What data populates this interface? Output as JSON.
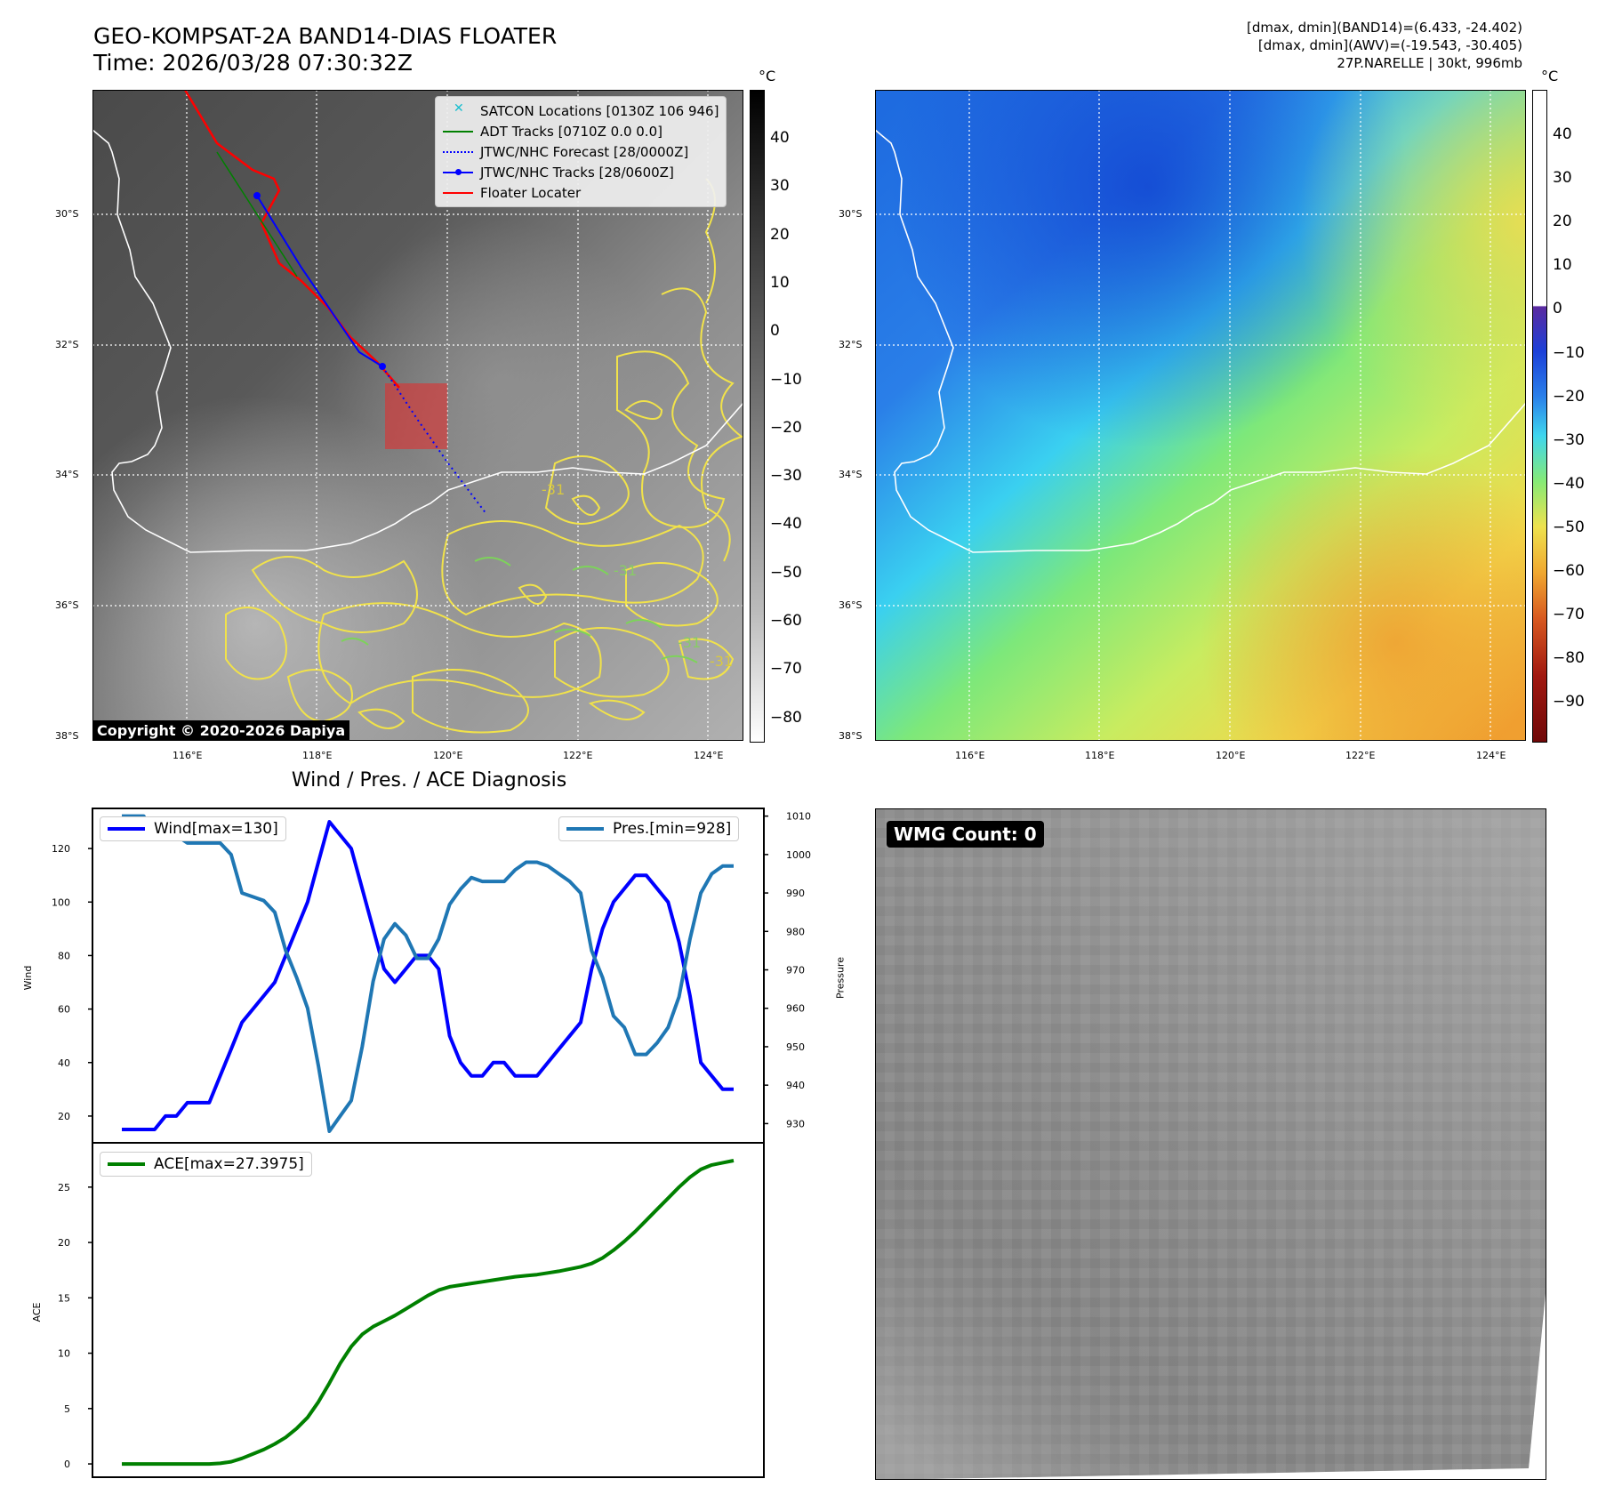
{
  "header": {
    "title_line1": "GEO-KOMPSAT-2A BAND14-DIAS FLOATER",
    "title_line2": "Time: 2026/03/28 07:30:32Z",
    "info_line1": "[dmax, dmin](BAND14)=(6.433, -24.402)",
    "info_line2": "[dmax, dmin](AWV)=(-19.543, -30.405)",
    "info_line3": "27P.NARELLE | 30kt, 996mb"
  },
  "map": {
    "lat_labels": [
      "30°S",
      "32°S",
      "34°S",
      "36°S",
      "38°S"
    ],
    "lon_labels": [
      "116°E",
      "118°E",
      "120°E",
      "122°E",
      "124°E"
    ],
    "contour_labels": [
      "-31",
      "-31",
      "-31",
      "-31"
    ],
    "copyright": "Copyright © 2020-2026 Dapiya",
    "legend": [
      {
        "label": "SATCON Locations [0130Z 106 946]",
        "color": "#17becf"
      },
      {
        "label": "ADT Tracks [0710Z 0.0 0.0]",
        "color": "#008000"
      },
      {
        "label": "JTWC/NHC Forecast [28/0000Z]",
        "color": "#0000ff"
      },
      {
        "label": "JTWC/NHC Tracks [28/0600Z]",
        "color": "#0000ff"
      },
      {
        "label": "Floater Locater",
        "color": "#ff0000"
      }
    ]
  },
  "colorbar_ir": {
    "unit": "°C",
    "ticks": [
      "40",
      "30",
      "20",
      "10",
      "0",
      "−10",
      "−20",
      "−30",
      "−40",
      "−50",
      "−60",
      "−70",
      "−80"
    ]
  },
  "colorbar_awv": {
    "unit": "°C",
    "ticks": [
      "40",
      "30",
      "20",
      "10",
      "0",
      "−10",
      "−20",
      "−30",
      "−40",
      "−50",
      "−60",
      "−70",
      "−80",
      "−90"
    ]
  },
  "wmg": {
    "label": "WMG Count: 0"
  },
  "chart_data": [
    {
      "type": "line",
      "title": "Wind / Pres. / ACE Diagnosis",
      "x": [
        0,
        1,
        2,
        3,
        4,
        5,
        6,
        7,
        8,
        9,
        10,
        11,
        12,
        13,
        14,
        15,
        16,
        17,
        18,
        19,
        20,
        21,
        22,
        23,
        24,
        25,
        26,
        27,
        28,
        29,
        30,
        31,
        32,
        33,
        34,
        35,
        36,
        37,
        38,
        39,
        40,
        41,
        42,
        43,
        44,
        45,
        46,
        47,
        48,
        49,
        50,
        51,
        52,
        53,
        54,
        55,
        56
      ],
      "series": [
        {
          "name": "Wind[max=130]",
          "axis": "left",
          "color": "#0000ff",
          "values": [
            15,
            15,
            15,
            15,
            20,
            20,
            25,
            25,
            25,
            35,
            45,
            55,
            60,
            65,
            70,
            80,
            90,
            100,
            115,
            130,
            125,
            120,
            105,
            90,
            75,
            70,
            75,
            80,
            80,
            75,
            50,
            40,
            35,
            35,
            40,
            40,
            35,
            35,
            35,
            40,
            45,
            50,
            55,
            75,
            90,
            100,
            105,
            110,
            110,
            105,
            100,
            85,
            65,
            40,
            35,
            30,
            30
          ]
        },
        {
          "name": "Pres.[min=928]",
          "axis": "right",
          "color": "#1f77b4",
          "values": [
            1010,
            1010,
            1010,
            1005,
            1006,
            1005,
            1003,
            1003,
            1003,
            1003,
            1000,
            990,
            989,
            988,
            985,
            975,
            968,
            960,
            945,
            928,
            932,
            936,
            950,
            967,
            978,
            982,
            979,
            973,
            973,
            978,
            987,
            991,
            994,
            993,
            993,
            993,
            996,
            998,
            998,
            997,
            995,
            993,
            990,
            975,
            968,
            958,
            955,
            948,
            948,
            951,
            955,
            963,
            978,
            990,
            995,
            997,
            997
          ]
        },
        {
          "name": "ACE[max=27.3975]",
          "axis": "ace",
          "color": "#008000",
          "values": [
            0,
            0,
            0,
            0,
            0,
            0,
            0,
            0,
            0,
            0.05,
            0.2,
            0.5,
            0.9,
            1.3,
            1.8,
            2.4,
            3.2,
            4.2,
            5.6,
            7.3,
            9.1,
            10.6,
            11.7,
            12.4,
            12.9,
            13.4,
            14.0,
            14.6,
            15.2,
            15.7,
            16.0,
            16.15,
            16.3,
            16.45,
            16.6,
            16.75,
            16.9,
            17.0,
            17.1,
            17.25,
            17.4,
            17.6,
            17.8,
            18.1,
            18.6,
            19.3,
            20.1,
            21.0,
            22.0,
            23.0,
            24.0,
            25.0,
            25.9,
            26.6,
            27.0,
            27.2,
            27.3975
          ]
        }
      ],
      "y_left": {
        "label": "Wind",
        "ticks": [
          20,
          40,
          60,
          80,
          100,
          120
        ],
        "range": [
          10,
          135
        ]
      },
      "y_right": {
        "label": "Pressure",
        "ticks": [
          930,
          940,
          950,
          960,
          970,
          980,
          990,
          1000,
          1010
        ],
        "range": [
          925,
          1012
        ]
      },
      "y_ace": {
        "label": "ACE",
        "ticks": [
          0,
          5,
          10,
          15,
          20,
          25
        ],
        "range": [
          -1.2,
          29
        ]
      }
    }
  ]
}
